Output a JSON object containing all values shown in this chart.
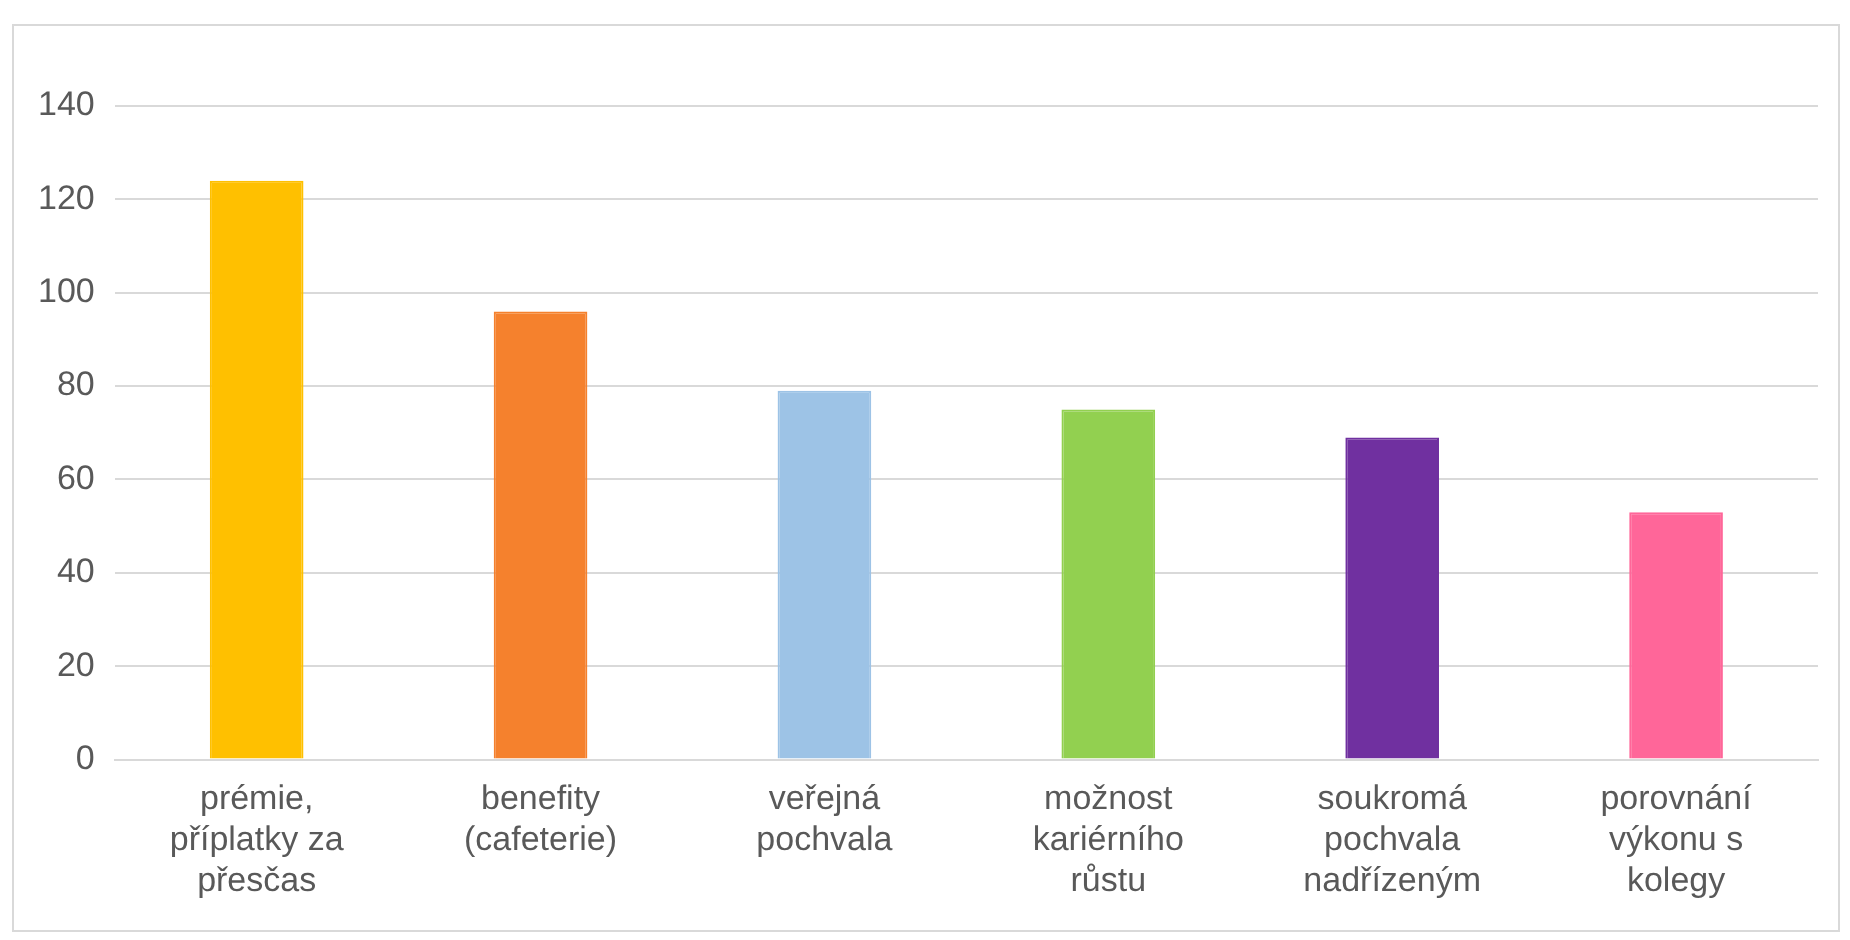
{
  "chart_data": {
    "type": "bar",
    "categories": [
      "prémie, příplatky za přesčas",
      "benefity (cafeterie)",
      "veřejná pochvala",
      "možnost kariérního růstu",
      "soukromá pochvala nadřízeným",
      "porovnání výkonu s kolegy"
    ],
    "values": [
      124,
      96,
      79,
      75,
      69,
      53
    ],
    "colors": [
      "#ffc000",
      "#f5812d",
      "#9dc3e6",
      "#92d050",
      "#7030a0",
      "#ff6699"
    ],
    "ylim": [
      0,
      140
    ],
    "yticks": [
      0,
      20,
      40,
      60,
      80,
      100,
      120,
      140
    ],
    "grid": "y",
    "legend": false
  }
}
